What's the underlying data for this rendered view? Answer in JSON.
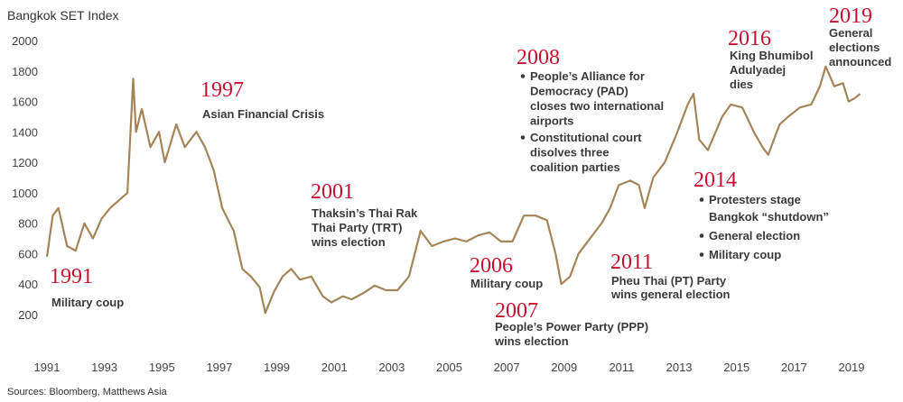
{
  "chart_data": {
    "type": "line",
    "title": "Bangkok SET Index",
    "source": "Sources: Bloomberg, Matthews Asia",
    "color": "#a4855a",
    "xlim": [
      1991,
      2019.3
    ],
    "xticks": [
      1991,
      1993,
      1995,
      1997,
      1999,
      2001,
      2003,
      2005,
      2007,
      2009,
      2011,
      2013,
      2015,
      2017,
      2019
    ],
    "ylim": [
      200,
      2000
    ],
    "yticks": [
      200,
      400,
      600,
      800,
      1000,
      1200,
      1400,
      1600,
      1800,
      2000
    ],
    "x": [
      1991.0,
      1991.2,
      1991.4,
      1991.7,
      1992.0,
      1992.3,
      1992.6,
      1992.9,
      1993.2,
      1993.5,
      1993.8,
      1994.0,
      1994.1,
      1994.3,
      1994.6,
      1994.9,
      1995.1,
      1995.5,
      1995.8,
      1996.2,
      1996.5,
      1996.8,
      1997.1,
      1997.5,
      1997.8,
      1998.1,
      1998.4,
      1998.6,
      1998.9,
      1999.2,
      1999.5,
      1999.8,
      2000.2,
      2000.6,
      2000.9,
      2001.3,
      2001.6,
      2002.0,
      2002.4,
      2002.8,
      2003.2,
      2003.6,
      2004.0,
      2004.4,
      2004.8,
      2005.2,
      2005.6,
      2006.0,
      2006.4,
      2006.8,
      2007.2,
      2007.6,
      2008.0,
      2008.4,
      2008.7,
      2008.9,
      2009.2,
      2009.5,
      2009.9,
      2010.3,
      2010.6,
      2010.9,
      2011.3,
      2011.6,
      2011.8,
      2012.1,
      2012.5,
      2012.9,
      2013.3,
      2013.5,
      2013.7,
      2014.0,
      2014.5,
      2014.8,
      2015.2,
      2015.6,
      2015.9,
      2016.1,
      2016.5,
      2016.8,
      2017.2,
      2017.6,
      2017.9,
      2018.1,
      2018.4,
      2018.7,
      2018.9,
      2019.1,
      2019.3
    ],
    "values": [
      580,
      850,
      900,
      650,
      620,
      800,
      700,
      830,
      900,
      950,
      1000,
      1750,
      1400,
      1550,
      1300,
      1400,
      1200,
      1450,
      1300,
      1400,
      1300,
      1150,
      900,
      750,
      500,
      450,
      380,
      210,
      350,
      450,
      500,
      430,
      450,
      320,
      280,
      320,
      300,
      340,
      390,
      360,
      360,
      450,
      750,
      650,
      680,
      700,
      680,
      720,
      740,
      680,
      680,
      850,
      850,
      820,
      600,
      400,
      450,
      600,
      700,
      800,
      900,
      1050,
      1080,
      1050,
      900,
      1100,
      1200,
      1380,
      1580,
      1650,
      1350,
      1280,
      1500,
      1580,
      1560,
      1400,
      1300,
      1250,
      1450,
      1500,
      1560,
      1580,
      1700,
      1830,
      1700,
      1720,
      1600,
      1620,
      1650
    ],
    "annotations": [
      {
        "label": "1991",
        "lines": [
          "Military coup"
        ]
      },
      {
        "label": "1997",
        "lines": [
          "Asian Financial Crisis"
        ]
      },
      {
        "label": "2001",
        "lines": [
          "Thaksin’s Thai Rak",
          "Thai Party (TRT)",
          "wins election"
        ]
      },
      {
        "label": "2006",
        "lines": [
          "Military coup"
        ]
      },
      {
        "label": "2007",
        "lines": [
          "People’s Power Party (PPP)",
          "wins election"
        ]
      },
      {
        "label": "2008",
        "bullets": [
          [
            "People’s Alliance for",
            "Democracy (PAD)",
            "closes two international",
            "airports"
          ],
          [
            "Constitutional court",
            "disolves three",
            "coalition parties"
          ]
        ]
      },
      {
        "label": "2011",
        "lines": [
          "Pheu Thai (PT) Party",
          "wins general election"
        ]
      },
      {
        "label": "2014",
        "bullets": [
          [
            "Protesters stage",
            "Bangkok “shutdown”"
          ],
          [
            "General election"
          ],
          [
            "Military coup"
          ]
        ]
      },
      {
        "label": "2016",
        "lines": [
          "King Bhumibol",
          "Adulyadej",
          "dies"
        ]
      },
      {
        "label": "2019",
        "lines": [
          "General",
          "elections",
          "announced"
        ]
      }
    ]
  }
}
